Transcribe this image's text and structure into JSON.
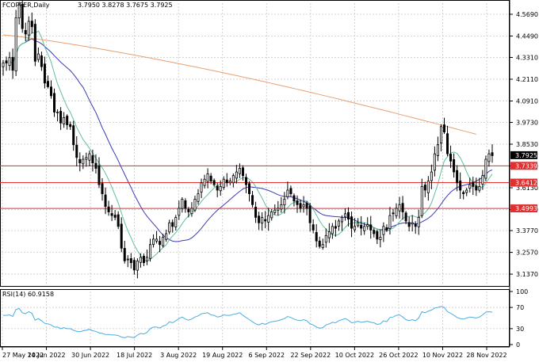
{
  "header": {
    "symbol": "FCOPPER,Daily",
    "ohlc": "3.7950 3.8278 3.7675 3.7925"
  },
  "rsi_label": "RSI(14) 60.9158",
  "colors": {
    "candle": "#000000",
    "ma_fast": "#5fbf9a",
    "ma_mid": "#3a3ab8",
    "ma_slow": "#e8a070",
    "level_line": "#e03030",
    "level_tag_bg": "#e03030",
    "price_tag_bg": "#000000",
    "rsi_line": "#4aaee0",
    "grid": "#c8c8c8"
  },
  "chart_data": [
    {
      "type": "candlestick",
      "title": "FCOPPER,Daily",
      "last_price": 3.7925,
      "ylim": [
        3.085,
        4.63
      ],
      "y_ticks": [
        "4.5690",
        "4.4490",
        "4.3310",
        "4.2110",
        "4.0910",
        "3.9730",
        "3.8530",
        "3.7330",
        "3.6130",
        "3.4930",
        "3.3770",
        "3.2570",
        "3.1370"
      ],
      "x_ticks": [
        "27 May 2022",
        "14 Jun 2022",
        "30 Jun 2022",
        "18 Jul 2022",
        "3 Aug 2022",
        "19 Aug 2022",
        "6 Sep 2022",
        "22 Sep 2022",
        "10 Oct 2022",
        "26 Oct 2022",
        "10 Nov 2022",
        "28 Nov 2022"
      ],
      "levels": [
        {
          "value": 3.7339,
          "label": "3.7339"
        },
        {
          "value": 3.6412,
          "label": "3.6412"
        },
        {
          "value": 3.4993,
          "label": "3.4993"
        }
      ],
      "price_label": "3.7925",
      "close": [
        4.3,
        4.3,
        4.33,
        4.26,
        4.55,
        4.62,
        4.49,
        4.46,
        4.53,
        4.5,
        4.31,
        4.35,
        4.28,
        4.19,
        4.17,
        4.12,
        4.03,
        4.03,
        3.97,
        4.0,
        3.96,
        3.95,
        3.85,
        3.78,
        3.75,
        3.77,
        3.78,
        3.8,
        3.75,
        3.72,
        3.63,
        3.58,
        3.51,
        3.48,
        3.46,
        3.45,
        3.4,
        3.28,
        3.21,
        3.22,
        3.2,
        3.16,
        3.21,
        3.23,
        3.2,
        3.23,
        3.3,
        3.33,
        3.33,
        3.3,
        3.34,
        3.36,
        3.42,
        3.4,
        3.45,
        3.5,
        3.55,
        3.5,
        3.48,
        3.5,
        3.55,
        3.58,
        3.64,
        3.66,
        3.69,
        3.65,
        3.63,
        3.6,
        3.62,
        3.66,
        3.64,
        3.65,
        3.68,
        3.7,
        3.72,
        3.68,
        3.63,
        3.58,
        3.52,
        3.45,
        3.42,
        3.45,
        3.43,
        3.46,
        3.48,
        3.49,
        3.5,
        3.52,
        3.55,
        3.6,
        3.58,
        3.54,
        3.52,
        3.5,
        3.52,
        3.5,
        3.42,
        3.38,
        3.32,
        3.29,
        3.3,
        3.35,
        3.37,
        3.4,
        3.39,
        3.43,
        3.45,
        3.47,
        3.44,
        3.39,
        3.4,
        3.42,
        3.39,
        3.4,
        3.41,
        3.38,
        3.36,
        3.33,
        3.34,
        3.4,
        3.38,
        3.46,
        3.47,
        3.5,
        3.52,
        3.48,
        3.43,
        3.4,
        3.42,
        3.4,
        3.45,
        3.62,
        3.6,
        3.65,
        3.7,
        3.8,
        3.85,
        3.95,
        3.92,
        3.8,
        3.76,
        3.7,
        3.64,
        3.6,
        3.58,
        3.6,
        3.63,
        3.62,
        3.6,
        3.62,
        3.68,
        3.77,
        3.8,
        3.79
      ]
    },
    {
      "type": "line",
      "title": "RSI(14) 60.9158",
      "series_name": "RSI(14)",
      "last_value": 60.9158,
      "ylim": [
        0,
        100
      ],
      "y_ticks": [
        "100",
        "70",
        "30",
        "0"
      ],
      "values": [
        55,
        55,
        56,
        53,
        66,
        68,
        60,
        58,
        62,
        59,
        46,
        49,
        45,
        40,
        39,
        37,
        33,
        33,
        30,
        32,
        30,
        30,
        27,
        25,
        24,
        26,
        27,
        29,
        26,
        25,
        22,
        21,
        19,
        19,
        18,
        18,
        17,
        14,
        13,
        15,
        14,
        13,
        18,
        21,
        20,
        23,
        30,
        33,
        33,
        31,
        35,
        37,
        43,
        41,
        45,
        49,
        52,
        48,
        46,
        48,
        52,
        54,
        58,
        59,
        60,
        56,
        55,
        52,
        53,
        56,
        55,
        55,
        57,
        58,
        60,
        55,
        51,
        47,
        43,
        39,
        37,
        40,
        38,
        41,
        43,
        44,
        45,
        47,
        49,
        53,
        51,
        48,
        46,
        45,
        47,
        45,
        39,
        37,
        33,
        31,
        32,
        37,
        39,
        42,
        41,
        45,
        47,
        49,
        46,
        41,
        42,
        44,
        42,
        43,
        44,
        42,
        41,
        38,
        39,
        45,
        43,
        51,
        52,
        55,
        56,
        52,
        47,
        45,
        47,
        45,
        50,
        62,
        60,
        63,
        65,
        69,
        70,
        72,
        70,
        62,
        59,
        55,
        51,
        49,
        48,
        50,
        52,
        51,
        50,
        52,
        56,
        61,
        62,
        61
      ]
    }
  ]
}
